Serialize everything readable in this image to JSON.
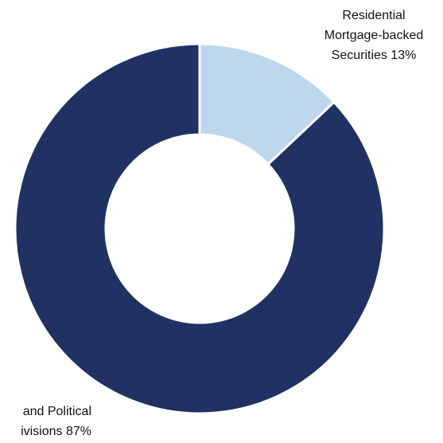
{
  "chart_data": {
    "type": "pie",
    "title": "",
    "donut": true,
    "legend": "none",
    "slices": [
      {
        "label": "Residential Mortgage-backed Securities",
        "label_lines": [
          "Residential",
          "Mortgage-backed",
          "Securities 13%"
        ],
        "value": 13,
        "display": "13%",
        "color": "#bdd7ee"
      },
      {
        "label": "Obligations of States and Political Subdivisions",
        "label_lines": [
          "and Political",
          "ivisions 87%"
        ],
        "value": 87,
        "display": "87%",
        "color": "#1f3263"
      }
    ]
  }
}
